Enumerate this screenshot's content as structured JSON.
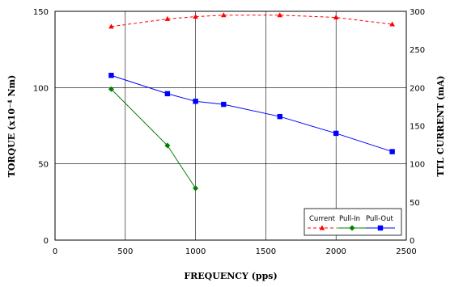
{
  "chart_data": {
    "type": "line",
    "xlabel": "FREQUENCY (pps)",
    "ylabel_left": "TORQUE (x10⁻⁴ Nm)",
    "ylabel_right": "TTL CURRENT (mA)",
    "xlim": [
      0,
      2500
    ],
    "ylim_left": [
      0,
      150
    ],
    "ylim_right": [
      0,
      300
    ],
    "x_ticks": [
      0,
      500,
      1000,
      1500,
      2000,
      2500
    ],
    "y_left_ticks": [
      0,
      50,
      100,
      150
    ],
    "y_right_ticks": [
      0,
      50,
      100,
      150,
      200,
      250,
      300
    ],
    "grid": true,
    "legend_position": "bottom-right",
    "colors": {
      "current": "#ff0000",
      "pull_in": "#008000",
      "pull_out": "#0000ff"
    },
    "series": [
      {
        "name": "Current",
        "axis": "right",
        "marker": "triangle",
        "dash": "dashed",
        "x": [
          400,
          800,
          1000,
          1200,
          1600,
          2000,
          2400
        ],
        "y": [
          280,
          290,
          293,
          295,
          295,
          292,
          283
        ]
      },
      {
        "name": "Pull-In",
        "axis": "left",
        "marker": "diamond",
        "dash": "solid",
        "x": [
          400,
          800,
          1000
        ],
        "y": [
          99,
          62,
          34
        ]
      },
      {
        "name": "Pull-Out",
        "axis": "left",
        "marker": "square",
        "dash": "solid",
        "x": [
          400,
          800,
          1000,
          1200,
          1600,
          2000,
          2400
        ],
        "y": [
          108,
          96,
          91,
          89,
          81,
          70,
          58
        ]
      }
    ]
  }
}
